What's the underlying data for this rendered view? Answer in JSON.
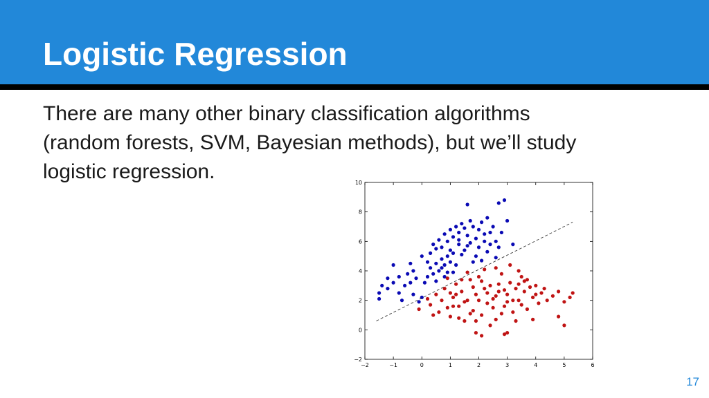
{
  "slide": {
    "title": "Logistic Regression",
    "body_lines": [
      "There are many other binary classification algorithms",
      "(random forests, SVM, Bayesian methods), but we’ll study",
      "logistic regression."
    ],
    "page_number": "17",
    "colors": {
      "header": "#2288d9",
      "rule": "#000000",
      "page_number": "#2288d9"
    }
  },
  "chart_data": {
    "type": "scatter",
    "xlim": [
      -2,
      6
    ],
    "ylim": [
      -2,
      10
    ],
    "xticks": [
      "−2",
      "−1",
      "0",
      "1",
      "2",
      "3",
      "4",
      "5",
      "6"
    ],
    "yticks": [
      "−2",
      "0",
      "2",
      "4",
      "6",
      "8",
      "10"
    ],
    "grid": false,
    "series": [
      {
        "color": "#0a0ab4",
        "points": [
          [
            -1.5,
            2.1
          ],
          [
            -1.5,
            2.5
          ],
          [
            -1.4,
            3.0
          ],
          [
            -1.2,
            3.5
          ],
          [
            -1.0,
            4.4
          ],
          [
            -1.2,
            2.8
          ],
          [
            -1.0,
            3.2
          ],
          [
            -0.8,
            2.5
          ],
          [
            -0.8,
            3.6
          ],
          [
            -0.6,
            3.0
          ],
          [
            -0.5,
            3.8
          ],
          [
            -0.4,
            3.2
          ],
          [
            -0.3,
            4.0
          ],
          [
            -0.2,
            3.5
          ],
          [
            -0.3,
            2.4
          ],
          [
            -0.1,
            1.9
          ],
          [
            0.1,
            3.2
          ],
          [
            0.2,
            3.6
          ],
          [
            0.3,
            4.2
          ],
          [
            0.4,
            3.8
          ],
          [
            0.5,
            4.5
          ],
          [
            0.6,
            4.0
          ],
          [
            0.7,
            4.8
          ],
          [
            0.8,
            4.4
          ],
          [
            0.9,
            5.0
          ],
          [
            1.0,
            4.6
          ],
          [
            1.1,
            5.2
          ],
          [
            0.9,
            3.9
          ],
          [
            0.5,
            5.5
          ],
          [
            0.3,
            5.2
          ],
          [
            0.4,
            5.8
          ],
          [
            0.6,
            6.1
          ],
          [
            0.7,
            5.6
          ],
          [
            0.8,
            6.5
          ],
          [
            0.9,
            6.0
          ],
          [
            1.0,
            6.8
          ],
          [
            1.1,
            6.3
          ],
          [
            1.2,
            7.0
          ],
          [
            1.3,
            6.6
          ],
          [
            1.4,
            7.2
          ],
          [
            1.5,
            6.9
          ],
          [
            1.6,
            6.4
          ],
          [
            1.7,
            7.4
          ],
          [
            1.8,
            7.0
          ],
          [
            1.9,
            6.2
          ],
          [
            2.0,
            6.8
          ],
          [
            2.1,
            7.3
          ],
          [
            2.2,
            6.5
          ],
          [
            2.3,
            7.6
          ],
          [
            2.5,
            7.0
          ],
          [
            2.6,
            6.0
          ],
          [
            2.8,
            6.6
          ],
          [
            2.9,
            8.8
          ],
          [
            3.0,
            7.4
          ],
          [
            1.6,
            8.5
          ],
          [
            2.7,
            8.6
          ],
          [
            1.3,
            5.8
          ],
          [
            1.5,
            5.4
          ],
          [
            1.7,
            5.9
          ],
          [
            1.9,
            5.0
          ],
          [
            2.1,
            4.7
          ],
          [
            2.3,
            5.3
          ],
          [
            2.4,
            5.8
          ],
          [
            2.6,
            4.9
          ],
          [
            3.2,
            5.8
          ],
          [
            0.2,
            4.6
          ],
          [
            0.7,
            4.2
          ],
          [
            1.2,
            4.4
          ],
          [
            1.4,
            5.1
          ],
          [
            1.8,
            4.6
          ],
          [
            2.0,
            5.6
          ],
          [
            2.2,
            6.0
          ],
          [
            0.0,
            5.0
          ],
          [
            -0.4,
            4.5
          ],
          [
            1.0,
            5.4
          ],
          [
            1.3,
            6.1
          ],
          [
            1.6,
            5.7
          ],
          [
            2.4,
            6.6
          ],
          [
            2.7,
            5.6
          ],
          [
            0.5,
            3.3
          ],
          [
            0.8,
            3.6
          ],
          [
            1.1,
            3.9
          ],
          [
            -0.7,
            2.0
          ],
          [
            0.0,
            2.2
          ]
        ]
      },
      {
        "color": "#c01414",
        "points": [
          [
            -0.1,
            1.4
          ],
          [
            0.2,
            2.1
          ],
          [
            0.3,
            1.7
          ],
          [
            0.5,
            2.4
          ],
          [
            0.6,
            1.2
          ],
          [
            0.7,
            2.0
          ],
          [
            0.8,
            2.8
          ],
          [
            0.9,
            1.5
          ],
          [
            1.0,
            0.9
          ],
          [
            1.1,
            2.2
          ],
          [
            1.2,
            3.1
          ],
          [
            1.3,
            1.6
          ],
          [
            1.4,
            2.6
          ],
          [
            1.5,
            0.6
          ],
          [
            1.6,
            2.0
          ],
          [
            1.7,
            3.4
          ],
          [
            1.8,
            1.3
          ],
          [
            1.9,
            2.4
          ],
          [
            2.0,
            3.6
          ],
          [
            2.1,
            1.0
          ],
          [
            2.2,
            2.8
          ],
          [
            2.3,
            1.8
          ],
          [
            2.4,
            3.0
          ],
          [
            2.5,
            2.1
          ],
          [
            2.6,
            0.7
          ],
          [
            2.7,
            2.6
          ],
          [
            2.8,
            3.8
          ],
          [
            2.9,
            1.6
          ],
          [
            3.0,
            2.4
          ],
          [
            3.1,
            3.2
          ],
          [
            3.2,
            1.2
          ],
          [
            3.3,
            2.8
          ],
          [
            3.4,
            2.0
          ],
          [
            3.5,
            3.6
          ],
          [
            3.6,
            2.6
          ],
          [
            3.7,
            1.4
          ],
          [
            3.8,
            2.9
          ],
          [
            3.9,
            2.2
          ],
          [
            4.0,
            3.0
          ],
          [
            4.1,
            1.8
          ],
          [
            4.2,
            2.5
          ],
          [
            4.4,
            2.0
          ],
          [
            4.6,
            2.3
          ],
          [
            4.8,
            2.6
          ],
          [
            5.0,
            1.9
          ],
          [
            5.2,
            2.2
          ],
          [
            5.3,
            2.5
          ],
          [
            5.0,
            0.3
          ],
          [
            4.8,
            0.9
          ],
          [
            2.1,
            -0.4
          ],
          [
            1.9,
            -0.2
          ],
          [
            3.0,
            -0.2
          ],
          [
            2.9,
            -0.3
          ],
          [
            1.3,
            0.8
          ],
          [
            1.1,
            1.6
          ],
          [
            1.6,
            3.9
          ],
          [
            2.2,
            4.1
          ],
          [
            2.6,
            4.2
          ],
          [
            3.1,
            4.4
          ],
          [
            3.4,
            4.0
          ],
          [
            0.9,
            3.5
          ],
          [
            1.4,
            3.4
          ],
          [
            2.0,
            2.0
          ],
          [
            2.3,
            2.5
          ],
          [
            2.5,
            1.5
          ],
          [
            2.7,
            3.1
          ],
          [
            3.2,
            2.0
          ],
          [
            3.5,
            1.7
          ],
          [
            3.6,
            3.3
          ],
          [
            1.5,
            1.9
          ],
          [
            1.8,
            2.9
          ],
          [
            2.4,
            0.3
          ],
          [
            2.8,
            1.1
          ],
          [
            3.9,
            0.7
          ],
          [
            4.3,
            2.8
          ],
          [
            0.4,
            1.0
          ],
          [
            1.0,
            2.5
          ],
          [
            3.3,
            0.6
          ],
          [
            3.7,
            3.4
          ],
          [
            2.1,
            3.3
          ],
          [
            1.2,
            2.4
          ],
          [
            2.6,
            2.3
          ],
          [
            3.0,
            1.9
          ],
          [
            1.7,
            1.1
          ],
          [
            4.0,
            2.4
          ],
          [
            2.9,
            2.7
          ],
          [
            1.9,
            0.6
          ],
          [
            3.4,
            3.1
          ]
        ]
      }
    ],
    "boundary_line": {
      "style": "dashed",
      "points": [
        [
          -1.6,
          0.6
        ],
        [
          5.3,
          7.3
        ]
      ]
    }
  }
}
